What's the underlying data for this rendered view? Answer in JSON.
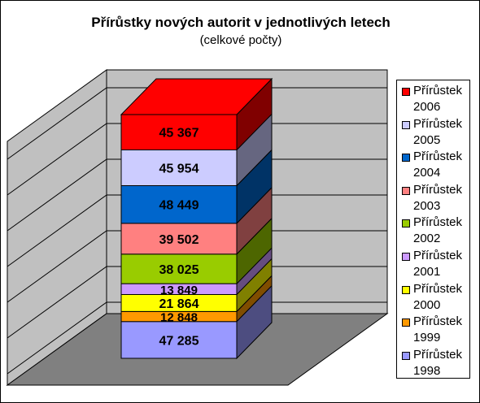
{
  "chart_data": {
    "type": "bar",
    "title": "Přírůstky nových autorit v jednotlivých letech",
    "subtitle": "(celkové počty)",
    "stacked": true,
    "three_d": true,
    "categories": [
      ""
    ],
    "series": [
      {
        "name": "Přírůstek 1998",
        "values": [
          47285
        ],
        "label": "47 285",
        "color": "#9999ff"
      },
      {
        "name": "Přírůstek 1999",
        "values": [
          12848
        ],
        "label": "12 848",
        "color": "#ff9900"
      },
      {
        "name": "Přírůstek 2000",
        "values": [
          21864
        ],
        "label": "21 864",
        "color": "#ffff00"
      },
      {
        "name": "Přírůstek 2001",
        "values": [
          13849
        ],
        "label": "13 849",
        "color": "#cc99ff"
      },
      {
        "name": "Přírůstek 2002",
        "values": [
          38025
        ],
        "label": "38 025",
        "color": "#99cc00"
      },
      {
        "name": "Přírůstek 2003",
        "values": [
          39502
        ],
        "label": "39 502",
        "color": "#ff8080"
      },
      {
        "name": "Přírůstek 2004",
        "values": [
          48449
        ],
        "label": "48 449",
        "color": "#0066cc"
      },
      {
        "name": "Přírůstek 2005",
        "values": [
          45954
        ],
        "label": "45 954",
        "color": "#ccccff"
      },
      {
        "name": "Přírůstek 2006",
        "values": [
          45367
        ],
        "label": "45 367",
        "color": "#ff0000"
      }
    ],
    "grid": true,
    "legend": "right"
  }
}
